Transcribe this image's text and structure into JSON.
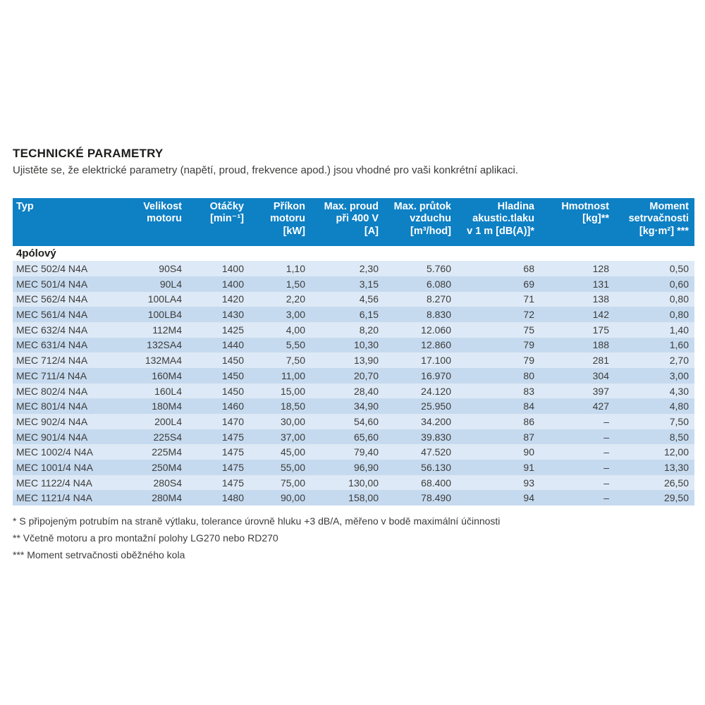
{
  "page": {
    "title": "TECHNICKÉ PARAMETRY",
    "subtitle": "Ujistěte se, že elektrické parametry (napětí, proud, frekvence apod.) jsou vhodné pro vaši konkrétní aplikaci."
  },
  "colors": {
    "header_bg": "#0e80c4",
    "header_text": "#ffffff",
    "row_light": "#dde9f6",
    "row_dark": "#c6daef",
    "body_text": "#3c3c3b"
  },
  "table": {
    "columns": [
      {
        "id": "typ",
        "align": "left",
        "lines": [
          "Typ"
        ]
      },
      {
        "id": "velikost-motoru",
        "align": "right",
        "lines": [
          "Velikost",
          "motoru"
        ]
      },
      {
        "id": "otacky",
        "align": "right",
        "lines": [
          "Otáčky",
          "[min⁻¹]"
        ]
      },
      {
        "id": "prikon-motoru",
        "align": "right",
        "lines": [
          "Příkon",
          "motoru",
          "[kW]"
        ]
      },
      {
        "id": "max-proud",
        "align": "right",
        "lines": [
          "Max. proud",
          "při 400 V",
          "[A]"
        ]
      },
      {
        "id": "max-prutok",
        "align": "right",
        "lines": [
          "Max. průtok",
          "vzduchu",
          "[m³/hod]"
        ]
      },
      {
        "id": "hladina-tlaku",
        "align": "right",
        "lines": [
          "Hladina",
          "akustic.tlaku",
          "v 1 m [dB(A)]*"
        ]
      },
      {
        "id": "hmotnost",
        "align": "right",
        "lines": [
          "Hmotnost",
          "[kg]**"
        ]
      },
      {
        "id": "moment",
        "align": "right",
        "lines": [
          "Moment",
          "setrvačnosti",
          "[kg·m²] ***"
        ]
      }
    ],
    "group_label": "4pólový",
    "rows": [
      [
        "MEC 502/4 N4A",
        "90S4",
        "1400",
        "1,10",
        "2,30",
        "5.760",
        "68",
        "128",
        "0,50"
      ],
      [
        "MEC 501/4 N4A",
        "90L4",
        "1400",
        "1,50",
        "3,15",
        "6.080",
        "69",
        "131",
        "0,60"
      ],
      [
        "MEC 562/4 N4A",
        "100LA4",
        "1420",
        "2,20",
        "4,56",
        "8.270",
        "71",
        "138",
        "0,80"
      ],
      [
        "MEC 561/4 N4A",
        "100LB4",
        "1430",
        "3,00",
        "6,15",
        "8.830",
        "72",
        "142",
        "0,80"
      ],
      [
        "MEC 632/4 N4A",
        "112M4",
        "1425",
        "4,00",
        "8,20",
        "12.060",
        "75",
        "175",
        "1,40"
      ],
      [
        "MEC 631/4 N4A",
        "132SA4",
        "1440",
        "5,50",
        "10,30",
        "12.860",
        "79",
        "188",
        "1,60"
      ],
      [
        "MEC 712/4 N4A",
        "132MA4",
        "1450",
        "7,50",
        "13,90",
        "17.100",
        "79",
        "281",
        "2,70"
      ],
      [
        "MEC 711/4 N4A",
        "160M4",
        "1450",
        "11,00",
        "20,70",
        "16.970",
        "80",
        "304",
        "3,00"
      ],
      [
        "MEC 802/4 N4A",
        "160L4",
        "1450",
        "15,00",
        "28,40",
        "24.120",
        "83",
        "397",
        "4,30"
      ],
      [
        "MEC 801/4 N4A",
        "180M4",
        "1460",
        "18,50",
        "34,90",
        "25.950",
        "84",
        "427",
        "4,80"
      ],
      [
        "MEC 902/4 N4A",
        "200L4",
        "1470",
        "30,00",
        "54,60",
        "34.200",
        "86",
        "–",
        "7,50"
      ],
      [
        "MEC 901/4 N4A",
        "225S4",
        "1475",
        "37,00",
        "65,60",
        "39.830",
        "87",
        "–",
        "8,50"
      ],
      [
        "MEC 1002/4 N4A",
        "225M4",
        "1475",
        "45,00",
        "79,40",
        "47.520",
        "90",
        "–",
        "12,00"
      ],
      [
        "MEC 1001/4 N4A",
        "250M4",
        "1475",
        "55,00",
        "96,90",
        "56.130",
        "91",
        "–",
        "13,30"
      ],
      [
        "MEC 1122/4 N4A",
        "280S4",
        "1475",
        "75,00",
        "130,00",
        "68.400",
        "93",
        "–",
        "26,50"
      ],
      [
        "MEC 1121/4 N4A",
        "280M4",
        "1480",
        "90,00",
        "158,00",
        "78.490",
        "94",
        "–",
        "29,50"
      ]
    ]
  },
  "footnotes": [
    "* S připojeným potrubím na straně výtlaku, tolerance úrovně hluku +3 dB/A, měřeno v bodě maximální účinnosti",
    "** Včetně motoru a pro montažní polohy LG270 nebo RD270",
    "*** Moment setrvačnosti oběžného kola"
  ]
}
